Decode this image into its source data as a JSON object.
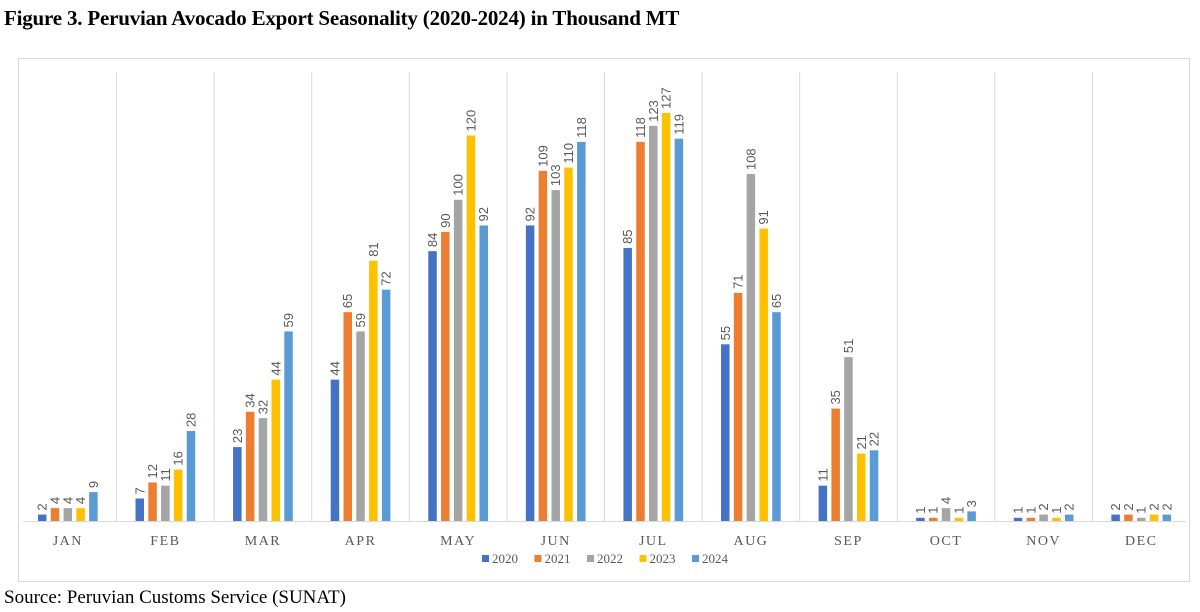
{
  "figure": {
    "title": "Figure 3.  Peruvian Avocado Export Seasonality (2020-2024) in Thousand MT",
    "source": "Source: Peruvian Customs Service (SUNAT)"
  },
  "chart_data": {
    "type": "bar",
    "title": "Peruvian Avocado Export Seasonality (2020-2024) in Thousand MT",
    "xlabel": "",
    "ylabel": "Thousand MT",
    "ylim": [
      0,
      127
    ],
    "grid": "vertical separators between categories",
    "legend": "bottom-center",
    "data_labels": true,
    "categories": [
      "JAN",
      "FEB",
      "MAR",
      "APR",
      "MAY",
      "JUN",
      "JUL",
      "AUG",
      "SEP",
      "OCT",
      "NOV",
      "DEC"
    ],
    "series": [
      {
        "name": "2020",
        "color": "#4472c4",
        "values": [
          2,
          7,
          23,
          44,
          84,
          92,
          85,
          55,
          11,
          1,
          1,
          2
        ]
      },
      {
        "name": "2021",
        "color": "#ed7d31",
        "values": [
          4,
          12,
          34,
          65,
          90,
          109,
          118,
          71,
          35,
          1,
          1,
          2
        ]
      },
      {
        "name": "2022",
        "color": "#a5a5a5",
        "values": [
          4,
          11,
          32,
          59,
          100,
          103,
          123,
          108,
          51,
          4,
          2,
          1
        ]
      },
      {
        "name": "2023",
        "color": "#ffc000",
        "values": [
          4,
          16,
          44,
          81,
          120,
          110,
          127,
          91,
          21,
          1,
          1,
          2
        ]
      },
      {
        "name": "2024",
        "color": "#5b9bd5",
        "values": [
          9,
          28,
          59,
          72,
          92,
          118,
          119,
          65,
          22,
          3,
          2,
          2
        ]
      }
    ]
  }
}
